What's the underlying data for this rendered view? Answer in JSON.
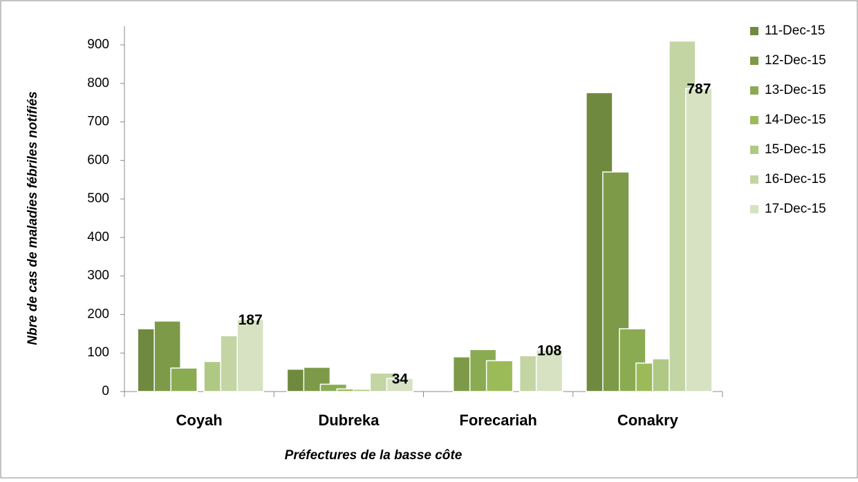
{
  "chart_data": {
    "type": "bar",
    "x_label": "Préfectures de la basse côte",
    "y_label": "Nbre de cas de maladies fébriles notifiés",
    "categories": [
      "Coyah",
      "Dubreka",
      "Forecariah",
      "Conakry"
    ],
    "series": [
      {
        "name": "11-Dec-15",
        "color": "#6f8a3e",
        "values": [
          163,
          58,
          null,
          776
        ]
      },
      {
        "name": "12-Dec-15",
        "color": "#7c9a48",
        "values": [
          183,
          63,
          90,
          570
        ]
      },
      {
        "name": "13-Dec-15",
        "color": "#8bab52",
        "values": [
          61,
          19,
          109,
          163
        ]
      },
      {
        "name": "14-Dec-15",
        "color": "#9bbb59",
        "values": [
          null,
          7,
          80,
          74
        ]
      },
      {
        "name": "15-Dec-15",
        "color": "#afc883",
        "values": [
          78,
          6,
          null,
          85
        ]
      },
      {
        "name": "16-Dec-15",
        "color": "#c3d5a3",
        "values": [
          145,
          48,
          93,
          910
        ]
      },
      {
        "name": "17-Dec-15",
        "color": "#d6e2c2",
        "values": [
          187,
          34,
          108,
          787
        ],
        "show_labels": true
      }
    ],
    "ylim": [
      0,
      900
    ],
    "yticks": [
      0,
      100,
      200,
      300,
      400,
      500,
      600,
      700,
      800,
      900
    ],
    "grid": false,
    "legend": "right"
  }
}
